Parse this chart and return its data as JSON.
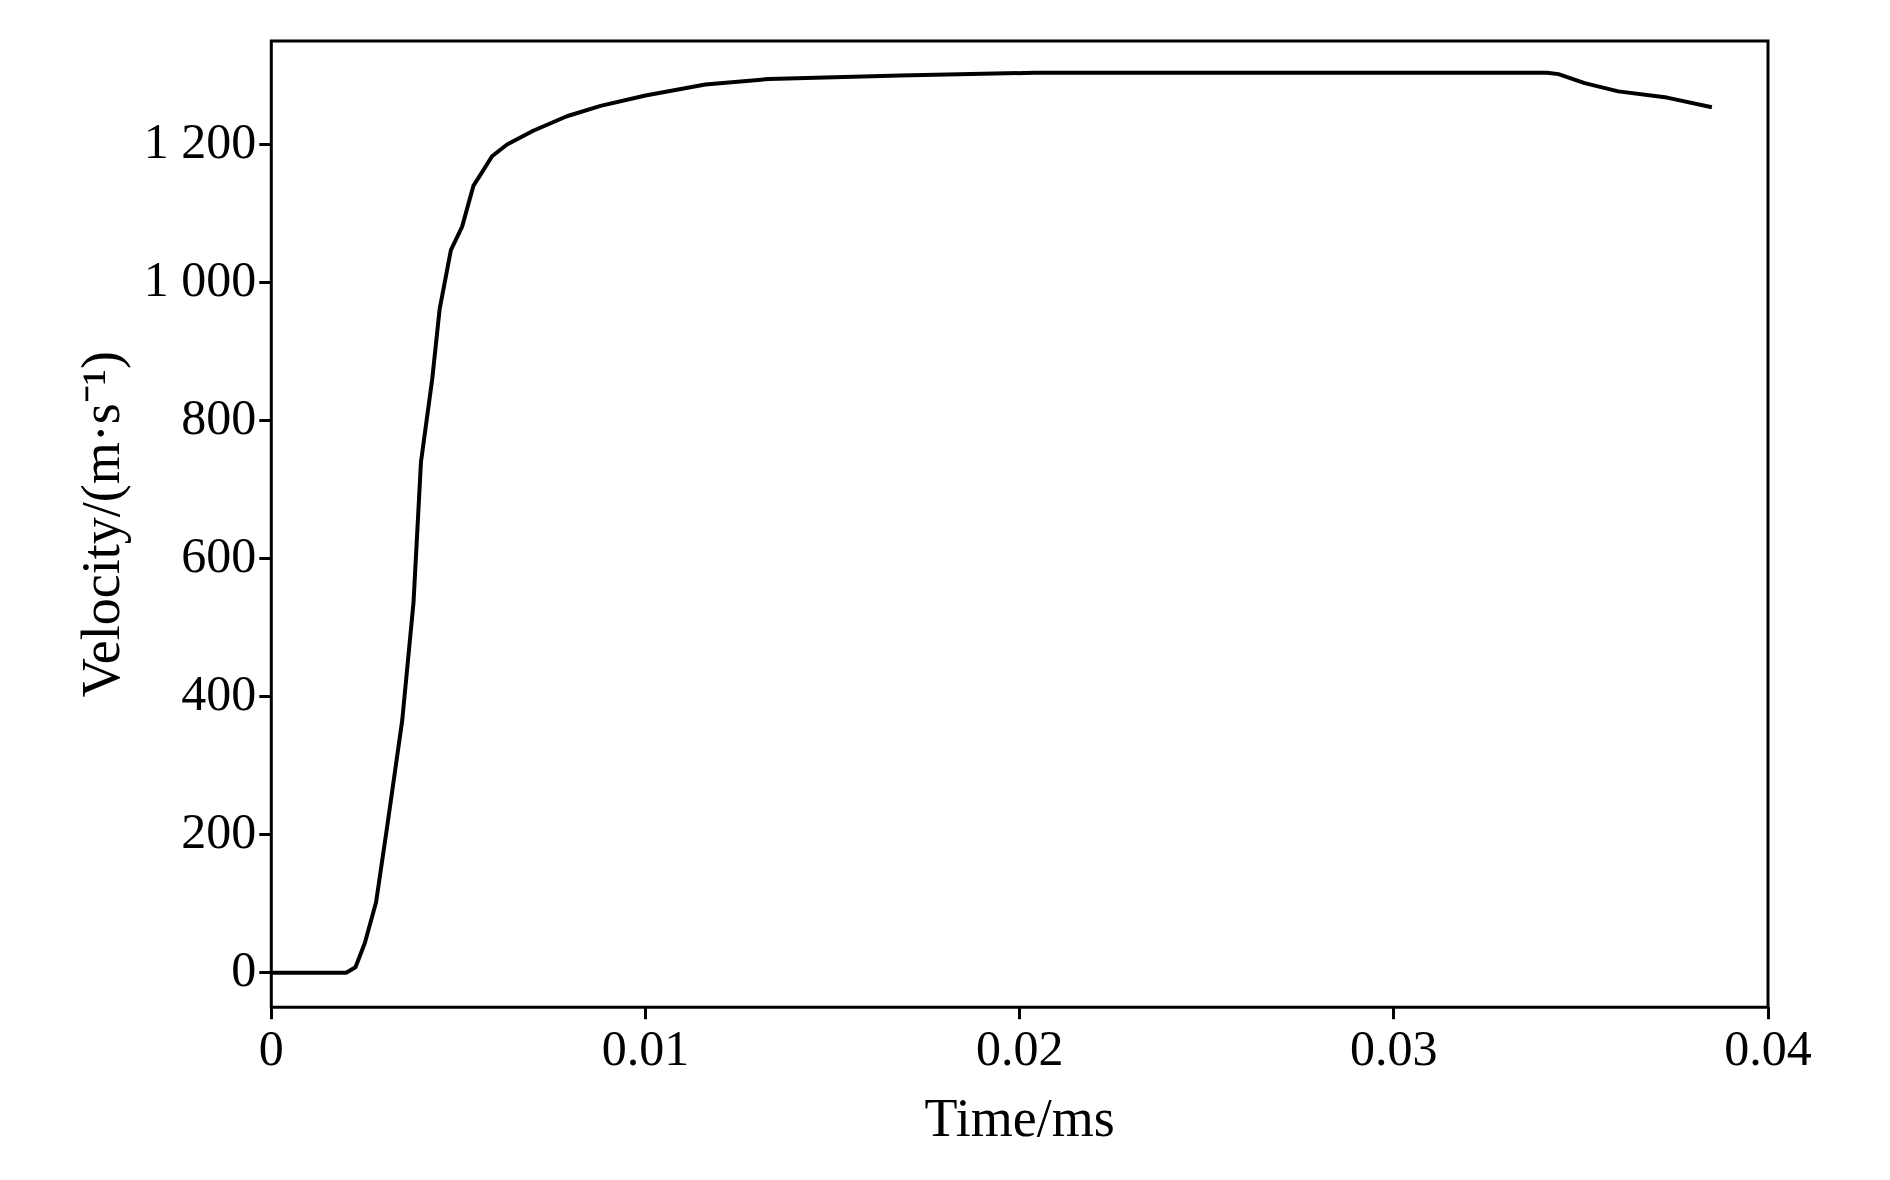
{
  "chart_data": {
    "type": "line",
    "xlabel": "Time/ms",
    "ylabel": "Velocity/(m·s⁻¹)",
    "x": [
      0,
      0.002,
      0.00225,
      0.0025,
      0.0028,
      0.0031,
      0.0035,
      0.0038,
      0.004,
      0.0043,
      0.0045,
      0.0048,
      0.0051,
      0.0054,
      0.0056,
      0.0059,
      0.0063,
      0.007,
      0.0079,
      0.0088,
      0.01,
      0.0116,
      0.0133,
      0.0168,
      0.0204,
      0.0239,
      0.0341,
      0.0344,
      0.0351,
      0.036,
      0.0373,
      0.0385
    ],
    "series": [
      {
        "color": "#000000",
        "values": [
          0,
          0,
          8,
          43,
          102,
          213,
          366,
          536,
          740,
          860,
          962,
          1047,
          1081,
          1140,
          1157,
          1183,
          1200,
          1220,
          1241,
          1256,
          1271,
          1287,
          1295,
          1300,
          1304,
          1304,
          1304,
          1302,
          1289,
          1277,
          1268,
          1254
        ]
      }
    ],
    "xlim": [
      0,
      0.04
    ],
    "xticks": [
      0,
      0.01,
      0.02,
      0.03,
      0.04
    ],
    "ylim": [
      -50,
      1350
    ],
    "yticks": [
      0,
      200,
      400,
      600,
      800,
      {
        "value": 1000,
        "label": "1 000"
      },
      {
        "value": 1200,
        "label": "1 200"
      }
    ],
    "grid": false,
    "legend": false,
    "marker": "none",
    "line_style": "solid"
  }
}
